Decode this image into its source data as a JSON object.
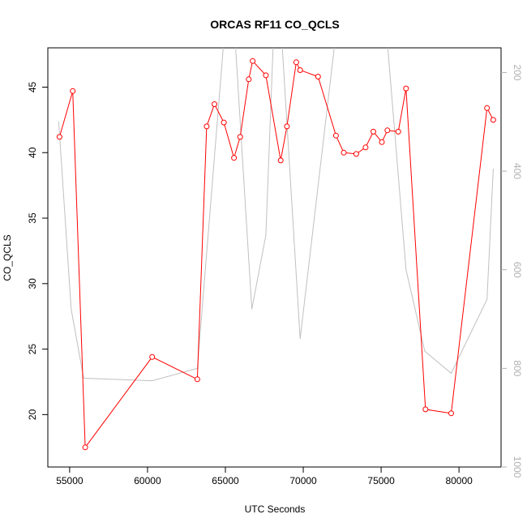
{
  "chart_data": {
    "type": "line",
    "title": "ORCAS RF11 CO_QCLS",
    "xlabel": "UTC Seconds",
    "ylabel": "CO_QCLS",
    "xlim": [
      53600,
      82700
    ],
    "ylim": [
      16.0,
      48.0
    ],
    "y2lim": [
      1000,
      150
    ],
    "y2_reversed": true,
    "x_ticks": [
      55000,
      60000,
      65000,
      70000,
      75000,
      80000
    ],
    "y_ticks": [
      20,
      25,
      30,
      35,
      40,
      45
    ],
    "y2_ticks": [
      200,
      400,
      600,
      800,
      1000
    ],
    "grid": false,
    "series": [
      {
        "color": "#ff0000",
        "axis": "left",
        "marker": "open-circle",
        "x": [
          54350,
          55200,
          56000,
          60300,
          63200,
          63800,
          64300,
          64900,
          65550,
          65950,
          66500,
          66750,
          67600,
          68550,
          68950,
          69550,
          69800,
          70950,
          72100,
          72600,
          73400,
          74000,
          74500,
          75050,
          75400,
          76100,
          76600,
          77850,
          79500,
          81800,
          82200
        ],
        "y": [
          41.2,
          44.7,
          17.5,
          24.4,
          22.7,
          42.0,
          43.7,
          42.3,
          39.6,
          41.2,
          45.6,
          47.0,
          45.9,
          39.4,
          42.0,
          46.9,
          46.3,
          45.8,
          41.3,
          40.0,
          39.9,
          40.4,
          41.6,
          40.8,
          41.7,
          41.6,
          44.9,
          20.4,
          20.1,
          43.4,
          42.5
        ]
      },
      {
        "color": "#c0c0c0",
        "axis": "right",
        "x": [
          54300,
          55100,
          55900,
          60300,
          63200,
          64900,
          65600,
          66700,
          67600,
          68100,
          68450,
          68600,
          69800,
          72100,
          73400,
          73600,
          74500,
          74700,
          75400,
          76600,
          77800,
          79500,
          81800,
          82200
        ],
        "y": [
          300,
          680,
          820,
          825,
          800,
          135,
          120,
          680,
          530,
          120,
          140,
          120,
          740,
          120,
          145,
          120,
          145,
          120,
          140,
          600,
          765,
          810,
          660,
          395
        ]
      }
    ]
  }
}
